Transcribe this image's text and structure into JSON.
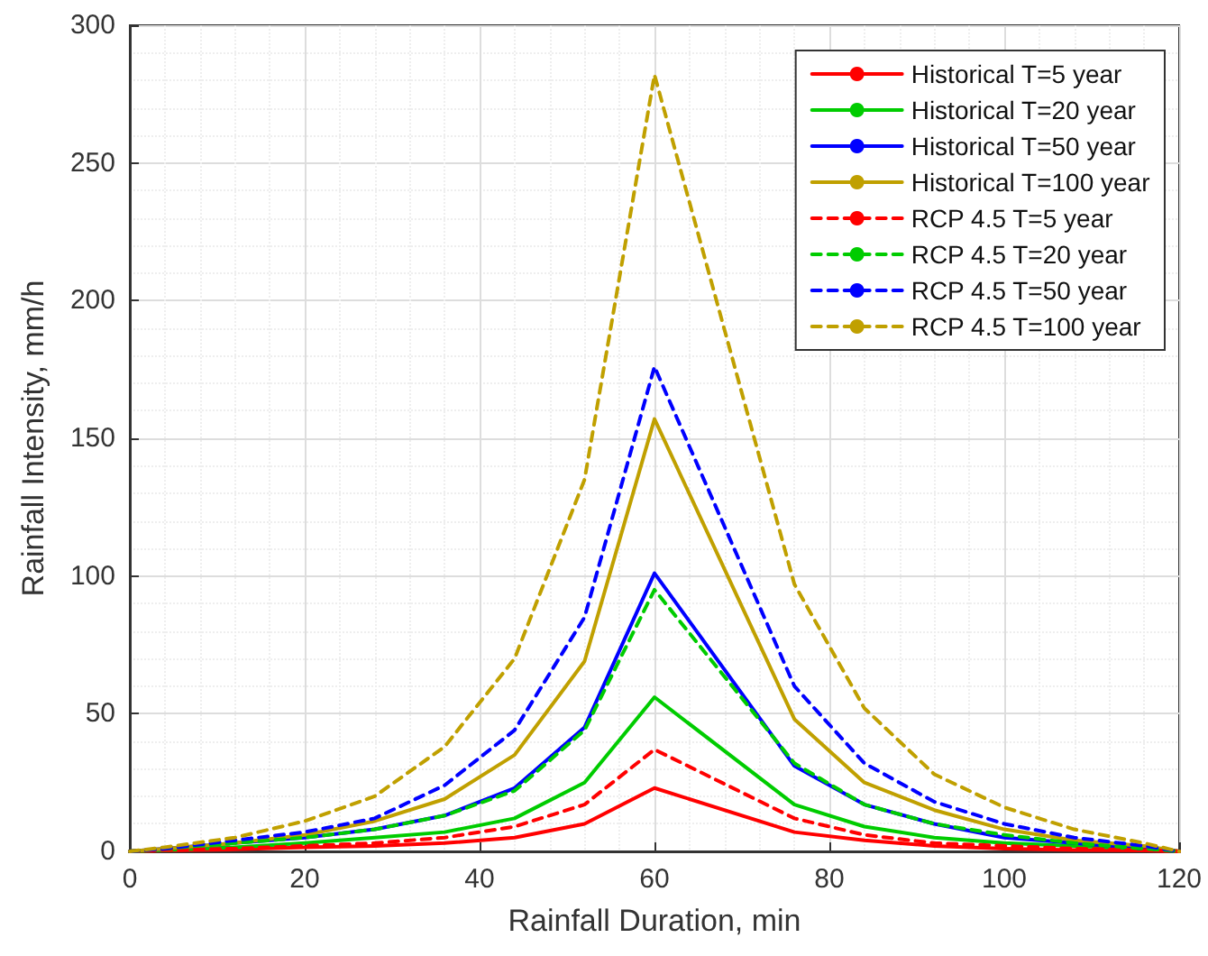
{
  "chart_data": {
    "type": "line",
    "xlabel": "Rainfall Duration, min",
    "ylabel": "Rainfall Intensity, mm/h",
    "x": [
      0,
      4,
      12,
      20,
      28,
      36,
      44,
      52,
      60,
      76,
      84,
      92,
      100,
      108,
      116,
      120
    ],
    "xlim": [
      0,
      120
    ],
    "xticks": [
      0,
      20,
      40,
      60,
      80,
      100,
      120
    ],
    "ylim": [
      0,
      300
    ],
    "yticks": [
      0,
      50,
      100,
      150,
      200,
      250,
      300
    ],
    "grid": true,
    "legend": "top right",
    "marker": "none",
    "series": [
      {
        "name": "Historical T=5 year",
        "color": "#ff0000",
        "line_style": "solid",
        "values": [
          0,
          0.3,
          0.7,
          1.5,
          2,
          3,
          5,
          10,
          23,
          7,
          4,
          2,
          1,
          0.5,
          0.3,
          0
        ]
      },
      {
        "name": "Historical T=20 year",
        "color": "#00cc00",
        "line_style": "solid",
        "values": [
          0,
          0.5,
          1.5,
          3,
          5,
          7,
          12,
          25,
          56,
          17,
          9,
          5,
          3,
          2,
          1,
          0
        ]
      },
      {
        "name": "Historical T=50 year",
        "color": "#0000ff",
        "line_style": "solid",
        "values": [
          0,
          1,
          3,
          5,
          8,
          13,
          23,
          45,
          101,
          31,
          17,
          10,
          5,
          3,
          1,
          0
        ]
      },
      {
        "name": "Historical T=100 year",
        "color": "#c0a000",
        "line_style": "solid",
        "values": [
          0,
          1,
          3,
          6,
          11,
          19,
          35,
          69,
          157,
          48,
          25,
          15,
          8,
          4,
          2,
          0
        ]
      },
      {
        "name": "RCP 4.5 T=5 year",
        "color": "#ff0000",
        "line_style": "dashed",
        "values": [
          0,
          0.5,
          1,
          2,
          3,
          5,
          9,
          17,
          37,
          12,
          6,
          3,
          2,
          1,
          0.5,
          0
        ]
      },
      {
        "name": "RCP 4.5 T=20 year",
        "color": "#00cc00",
        "line_style": "dashed",
        "values": [
          0,
          1,
          3,
          5,
          8,
          13,
          22,
          44,
          95,
          32,
          17,
          10,
          6,
          3,
          1,
          0
        ]
      },
      {
        "name": "RCP 4.5 T=50 year",
        "color": "#0000ff",
        "line_style": "dashed",
        "values": [
          0,
          1,
          4,
          7,
          12,
          24,
          44,
          85,
          176,
          60,
          32,
          18,
          10,
          5,
          2,
          0
        ]
      },
      {
        "name": "RCP 4.5 T=100 year",
        "color": "#c0a000",
        "line_style": "dashed",
        "values": [
          0,
          1.5,
          5,
          11,
          20,
          38,
          70,
          135,
          282,
          97,
          52,
          28,
          16,
          8,
          3,
          0
        ]
      }
    ]
  }
}
